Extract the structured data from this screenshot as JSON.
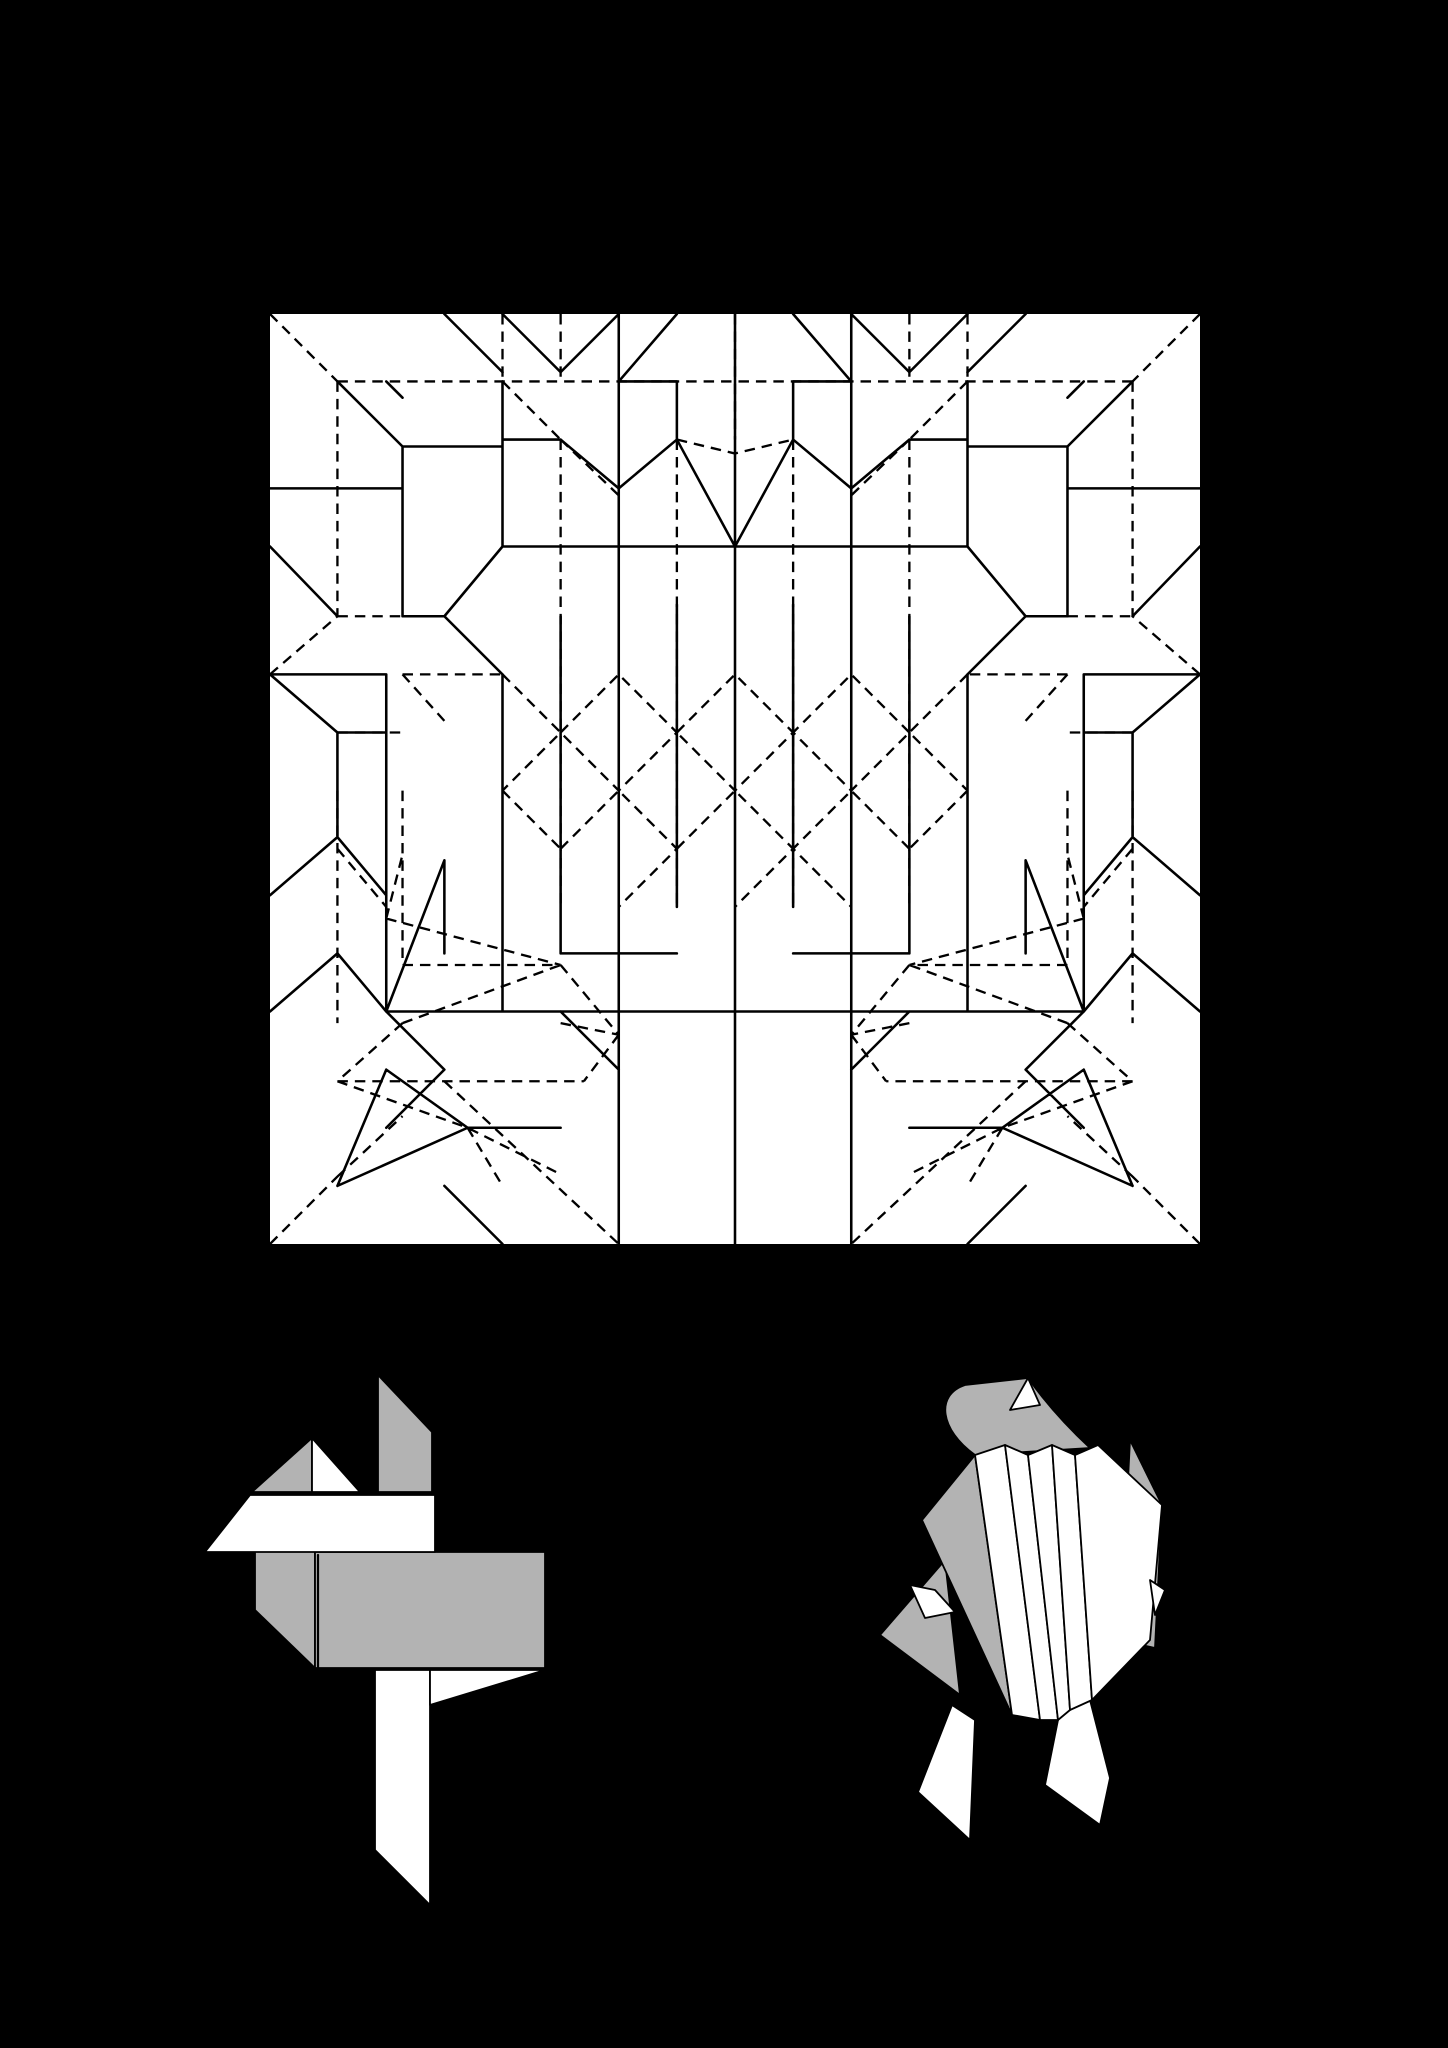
{
  "colors": {
    "background": "#000000",
    "paper_front": "#ffffff",
    "paper_back": "#b3b3b3",
    "line": "#000000"
  },
  "figures": {
    "crease_pattern": {
      "name": "crease-pattern",
      "line_types": [
        "mountain-fold-solid",
        "valley-fold-dashed"
      ]
    },
    "base": {
      "name": "folded-base-diagram"
    },
    "model": {
      "name": "finished-model-diagram"
    }
  }
}
